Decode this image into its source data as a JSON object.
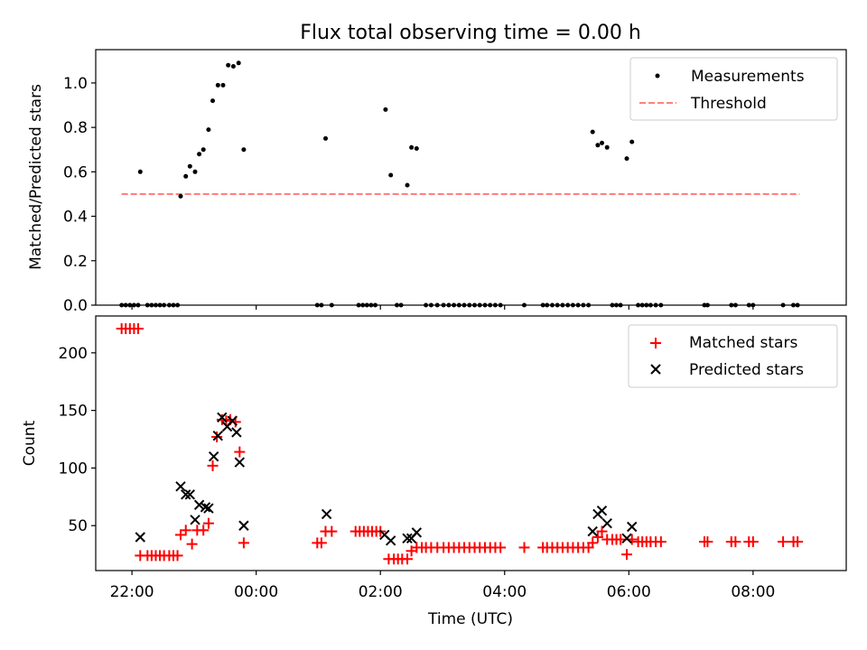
{
  "chart_data": [
    {
      "type": "scatter",
      "title": "Flux total observing time = 0.00 h",
      "xlabel": "",
      "ylabel": "Matched/Predicted stars",
      "xlim": [
        "21:25",
        "09:30"
      ],
      "ylim": [
        0,
        1.15
      ],
      "y_ticks": [
        "0.0",
        "0.2",
        "0.4",
        "0.6",
        "0.8",
        "1.0"
      ],
      "y_tick_values": [
        0,
        0.2,
        0.4,
        0.6,
        0.8,
        1.0
      ],
      "legend_position": "top-right",
      "series": [
        {
          "name": "Measurements",
          "style": "dot",
          "color": "#000000",
          "points": [
            [
              "21:50",
              0
            ],
            [
              "21:54",
              0
            ],
            [
              "21:58",
              0
            ],
            [
              "22:02",
              0
            ],
            [
              "22:06",
              0
            ],
            [
              "22:08",
              0.6
            ],
            [
              "22:15",
              0
            ],
            [
              "22:19",
              0
            ],
            [
              "22:23",
              0
            ],
            [
              "22:27",
              0
            ],
            [
              "22:31",
              0
            ],
            [
              "22:36",
              0
            ],
            [
              "22:40",
              0
            ],
            [
              "22:44",
              0
            ],
            [
              "22:47",
              0.49
            ],
            [
              "22:52",
              0.58
            ],
            [
              "22:56",
              0.625
            ],
            [
              "23:01",
              0.6
            ],
            [
              "23:05",
              0.68
            ],
            [
              "23:09",
              0.7
            ],
            [
              "23:14",
              0.79
            ],
            [
              "23:18",
              0.92
            ],
            [
              "23:23",
              0.99
            ],
            [
              "23:28",
              0.99
            ],
            [
              "23:33",
              1.08
            ],
            [
              "23:38",
              1.075
            ],
            [
              "23:43",
              1.09
            ],
            [
              "23:48",
              0.7
            ],
            [
              "00:59",
              0
            ],
            [
              "01:03",
              0
            ],
            [
              "01:07",
              0.75
            ],
            [
              "01:13",
              0
            ],
            [
              "01:39",
              0
            ],
            [
              "01:43",
              0
            ],
            [
              "01:47",
              0
            ],
            [
              "01:51",
              0
            ],
            [
              "01:55",
              0
            ],
            [
              "02:05",
              0.88
            ],
            [
              "02:10",
              0.585
            ],
            [
              "02:16",
              0
            ],
            [
              "02:20",
              0
            ],
            [
              "02:26",
              0.54
            ],
            [
              "02:30",
              0.71
            ],
            [
              "02:35",
              0.705
            ],
            [
              "02:44",
              0
            ],
            [
              "02:49",
              0
            ],
            [
              "02:55",
              0
            ],
            [
              "03:01",
              0
            ],
            [
              "03:06",
              0
            ],
            [
              "03:11",
              0
            ],
            [
              "03:16",
              0
            ],
            [
              "03:21",
              0
            ],
            [
              "03:26",
              0
            ],
            [
              "03:31",
              0
            ],
            [
              "03:36",
              0
            ],
            [
              "03:41",
              0
            ],
            [
              "03:46",
              0
            ],
            [
              "03:51",
              0
            ],
            [
              "03:56",
              0
            ],
            [
              "04:19",
              0
            ],
            [
              "04:37",
              0
            ],
            [
              "04:41",
              0
            ],
            [
              "04:46",
              0
            ],
            [
              "04:51",
              0
            ],
            [
              "04:56",
              0
            ],
            [
              "05:01",
              0
            ],
            [
              "05:06",
              0
            ],
            [
              "05:11",
              0
            ],
            [
              "05:16",
              0
            ],
            [
              "05:21",
              0
            ],
            [
              "05:25",
              0.78
            ],
            [
              "05:30",
              0.72
            ],
            [
              "05:34",
              0.73
            ],
            [
              "05:39",
              0.71
            ],
            [
              "05:44",
              0
            ],
            [
              "05:48",
              0
            ],
            [
              "05:52",
              0
            ],
            [
              "05:58",
              0.66
            ],
            [
              "06:03",
              0.735
            ],
            [
              "06:09",
              0
            ],
            [
              "06:13",
              0
            ],
            [
              "06:17",
              0
            ],
            [
              "06:21",
              0
            ],
            [
              "06:26",
              0
            ],
            [
              "06:31",
              0
            ],
            [
              "07:13",
              0
            ],
            [
              "07:16",
              0
            ],
            [
              "07:39",
              0
            ],
            [
              "07:43",
              0
            ],
            [
              "07:56",
              0
            ],
            [
              "08:00",
              0
            ],
            [
              "08:29",
              0
            ],
            [
              "08:39",
              0
            ],
            [
              "08:43",
              0
            ]
          ]
        },
        {
          "name": "Threshold",
          "style": "dashed-line",
          "color": "#ff8080",
          "points": [
            [
              "21:50",
              0.5
            ],
            [
              "08:45",
              0.5
            ]
          ]
        }
      ]
    },
    {
      "type": "scatter",
      "title": "",
      "xlabel": "Time (UTC)",
      "ylabel": "Count",
      "xlim": [
        "21:25",
        "09:30"
      ],
      "ylim": [
        11,
        232
      ],
      "x_ticks": [
        "22:00",
        "00:00",
        "02:00",
        "04:00",
        "06:00",
        "08:00"
      ],
      "y_ticks": [
        "50",
        "100",
        "150",
        "200"
      ],
      "y_tick_values": [
        50,
        100,
        150,
        200
      ],
      "legend_position": "top-right",
      "series": [
        {
          "name": "Matched stars",
          "marker": "+",
          "color": "#ff0000",
          "points": [
            [
              "21:50",
              221
            ],
            [
              "21:54",
              221
            ],
            [
              "21:58",
              221
            ],
            [
              "22:02",
              221
            ],
            [
              "22:06",
              221
            ],
            [
              "22:08",
              24
            ],
            [
              "22:15",
              24
            ],
            [
              "22:19",
              24
            ],
            [
              "22:23",
              24
            ],
            [
              "22:27",
              24
            ],
            [
              "22:31",
              24
            ],
            [
              "22:36",
              24
            ],
            [
              "22:40",
              24
            ],
            [
              "22:44",
              24
            ],
            [
              "22:47",
              42
            ],
            [
              "22:52",
              46
            ],
            [
              "22:58",
              34
            ],
            [
              "23:03",
              46
            ],
            [
              "23:09",
              46
            ],
            [
              "23:14",
              52
            ],
            [
              "23:18",
              102
            ],
            [
              "23:22",
              127
            ],
            [
              "23:27",
              142
            ],
            [
              "23:31",
              141
            ],
            [
              "23:35",
              142
            ],
            [
              "23:40",
              140
            ],
            [
              "23:44",
              114
            ],
            [
              "23:48",
              35
            ],
            [
              "00:59",
              35
            ],
            [
              "01:03",
              35
            ],
            [
              "01:07",
              45
            ],
            [
              "01:13",
              45
            ],
            [
              "01:36",
              45
            ],
            [
              "01:40",
              45
            ],
            [
              "01:44",
              45
            ],
            [
              "01:48",
              45
            ],
            [
              "01:52",
              45
            ],
            [
              "01:56",
              45
            ],
            [
              "02:00",
              45
            ],
            [
              "02:08",
              21
            ],
            [
              "02:13",
              21
            ],
            [
              "02:17",
              21
            ],
            [
              "02:21",
              21
            ],
            [
              "02:26",
              21
            ],
            [
              "02:30",
              28
            ],
            [
              "02:35",
              31
            ],
            [
              "02:40",
              31
            ],
            [
              "02:44",
              31
            ],
            [
              "02:49",
              31
            ],
            [
              "02:55",
              31
            ],
            [
              "03:01",
              31
            ],
            [
              "03:06",
              31
            ],
            [
              "03:11",
              31
            ],
            [
              "03:16",
              31
            ],
            [
              "03:21",
              31
            ],
            [
              "03:26",
              31
            ],
            [
              "03:31",
              31
            ],
            [
              "03:36",
              31
            ],
            [
              "03:41",
              31
            ],
            [
              "03:46",
              31
            ],
            [
              "03:51",
              31
            ],
            [
              "03:56",
              31
            ],
            [
              "04:19",
              31
            ],
            [
              "04:37",
              31
            ],
            [
              "04:41",
              31
            ],
            [
              "04:46",
              31
            ],
            [
              "04:51",
              31
            ],
            [
              "04:56",
              31
            ],
            [
              "05:01",
              31
            ],
            [
              "05:06",
              31
            ],
            [
              "05:11",
              31
            ],
            [
              "05:16",
              31
            ],
            [
              "05:21",
              31
            ],
            [
              "05:25",
              35
            ],
            [
              "05:30",
              40
            ],
            [
              "05:34",
              45
            ],
            [
              "05:39",
              38
            ],
            [
              "05:44",
              38
            ],
            [
              "05:48",
              38
            ],
            [
              "05:52",
              38
            ],
            [
              "05:58",
              25
            ],
            [
              "06:03",
              38
            ],
            [
              "06:09",
              36
            ],
            [
              "06:13",
              36
            ],
            [
              "06:17",
              36
            ],
            [
              "06:21",
              36
            ],
            [
              "06:26",
              36
            ],
            [
              "06:31",
              36
            ],
            [
              "07:13",
              36
            ],
            [
              "07:16",
              36
            ],
            [
              "07:39",
              36
            ],
            [
              "07:43",
              36
            ],
            [
              "07:56",
              36
            ],
            [
              "08:00",
              36
            ],
            [
              "08:29",
              36
            ],
            [
              "08:39",
              36
            ],
            [
              "08:43",
              36
            ]
          ]
        },
        {
          "name": "Predicted stars",
          "marker": "x",
          "color": "#000000",
          "points": [
            [
              "22:08",
              40
            ],
            [
              "22:47",
              84
            ],
            [
              "22:52",
              77
            ],
            [
              "22:56",
              77
            ],
            [
              "23:01",
              55
            ],
            [
              "23:05",
              68
            ],
            [
              "23:11",
              66
            ],
            [
              "23:14",
              65
            ],
            [
              "23:19",
              110
            ],
            [
              "23:23",
              128
            ],
            [
              "23:27",
              144
            ],
            [
              "23:32",
              136
            ],
            [
              "23:37",
              141
            ],
            [
              "23:41",
              131
            ],
            [
              "23:44",
              105
            ],
            [
              "23:48",
              50
            ],
            [
              "01:08",
              60
            ],
            [
              "02:04",
              42
            ],
            [
              "02:10",
              37
            ],
            [
              "02:26",
              39
            ],
            [
              "02:30",
              39
            ],
            [
              "02:35",
              44
            ],
            [
              "05:25",
              45
            ],
            [
              "05:30",
              60
            ],
            [
              "05:34",
              63
            ],
            [
              "05:39",
              52
            ],
            [
              "05:58",
              39
            ],
            [
              "06:03",
              49
            ]
          ]
        }
      ]
    }
  ]
}
